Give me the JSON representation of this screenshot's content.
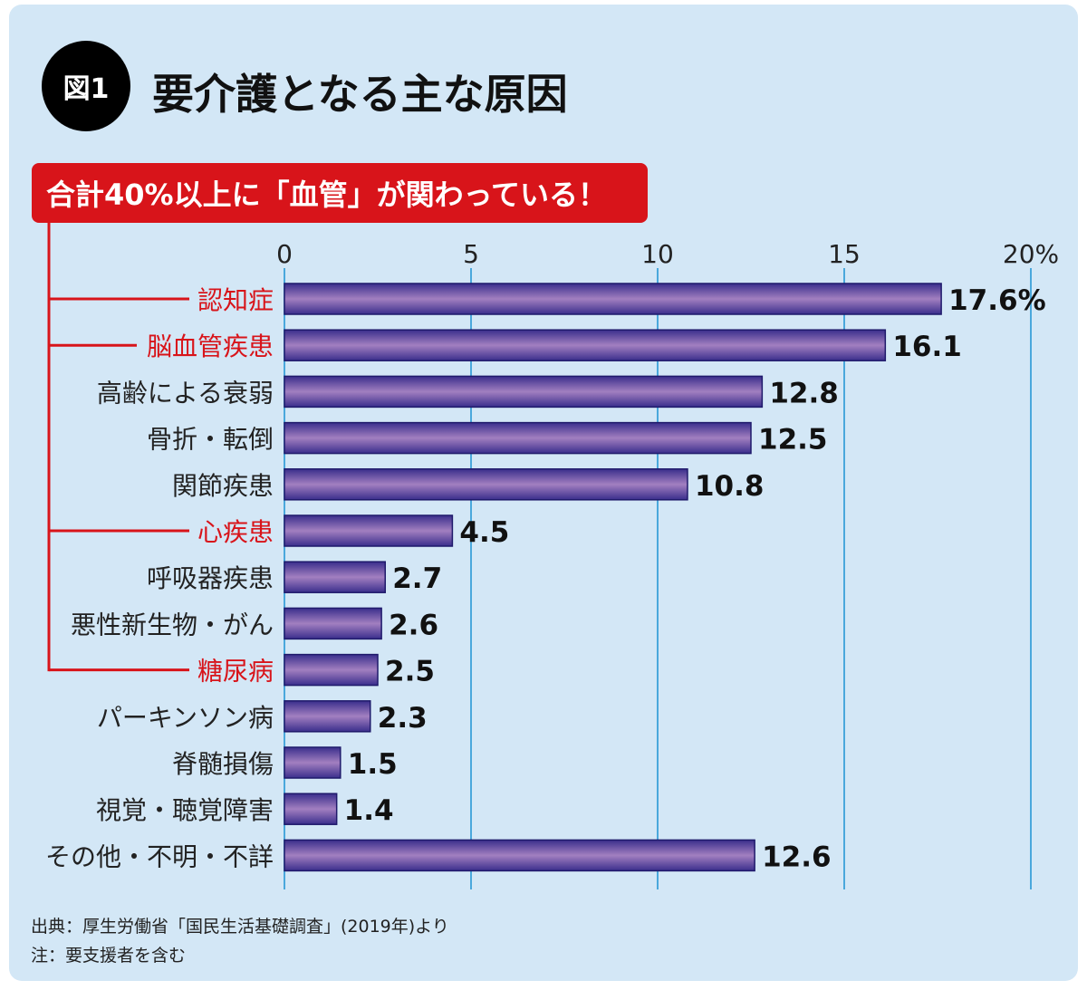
{
  "figure_label": "図1",
  "title": "要介護となる主な原因",
  "callout": "合計40%以上に「血管」が関わっている！",
  "chart_data": {
    "type": "bar",
    "orientation": "horizontal",
    "categories": [
      "認知症",
      "脳血管疾患",
      "高齢による衰弱",
      "骨折・転倒",
      "関節疾患",
      "心疾患",
      "呼吸器疾患",
      "悪性新生物・がん",
      "糖尿病",
      "パーキンソン病",
      "脊髄損傷",
      "視覚・聴覚障害",
      "その他・不明・不詳"
    ],
    "values": [
      17.6,
      16.1,
      12.8,
      12.5,
      10.8,
      4.5,
      2.7,
      2.6,
      2.5,
      2.3,
      1.5,
      1.4,
      12.6
    ],
    "value_labels": [
      "17.6%",
      "16.1",
      "12.8",
      "12.5",
      "10.8",
      "4.5",
      "2.7",
      "2.6",
      "2.5",
      "2.3",
      "1.5",
      "1.4",
      "12.6"
    ],
    "highlighted": [
      "認知症",
      "脳血管疾患",
      "心疾患",
      "糖尿病"
    ],
    "xticks": [
      "0",
      "5",
      "10",
      "15",
      "20%"
    ],
    "xlim": [
      0,
      20
    ],
    "grid": true,
    "colors": {
      "bar": "#3a2e8c",
      "bar_highlight": "#a27fc0",
      "highlight_label": "#d8141a",
      "grid": "#4aa8dc"
    }
  },
  "notes": [
    "出典：厚生労働省「国民生活基礎調査」(2019年)より",
    "注：要支援者を含む"
  ]
}
